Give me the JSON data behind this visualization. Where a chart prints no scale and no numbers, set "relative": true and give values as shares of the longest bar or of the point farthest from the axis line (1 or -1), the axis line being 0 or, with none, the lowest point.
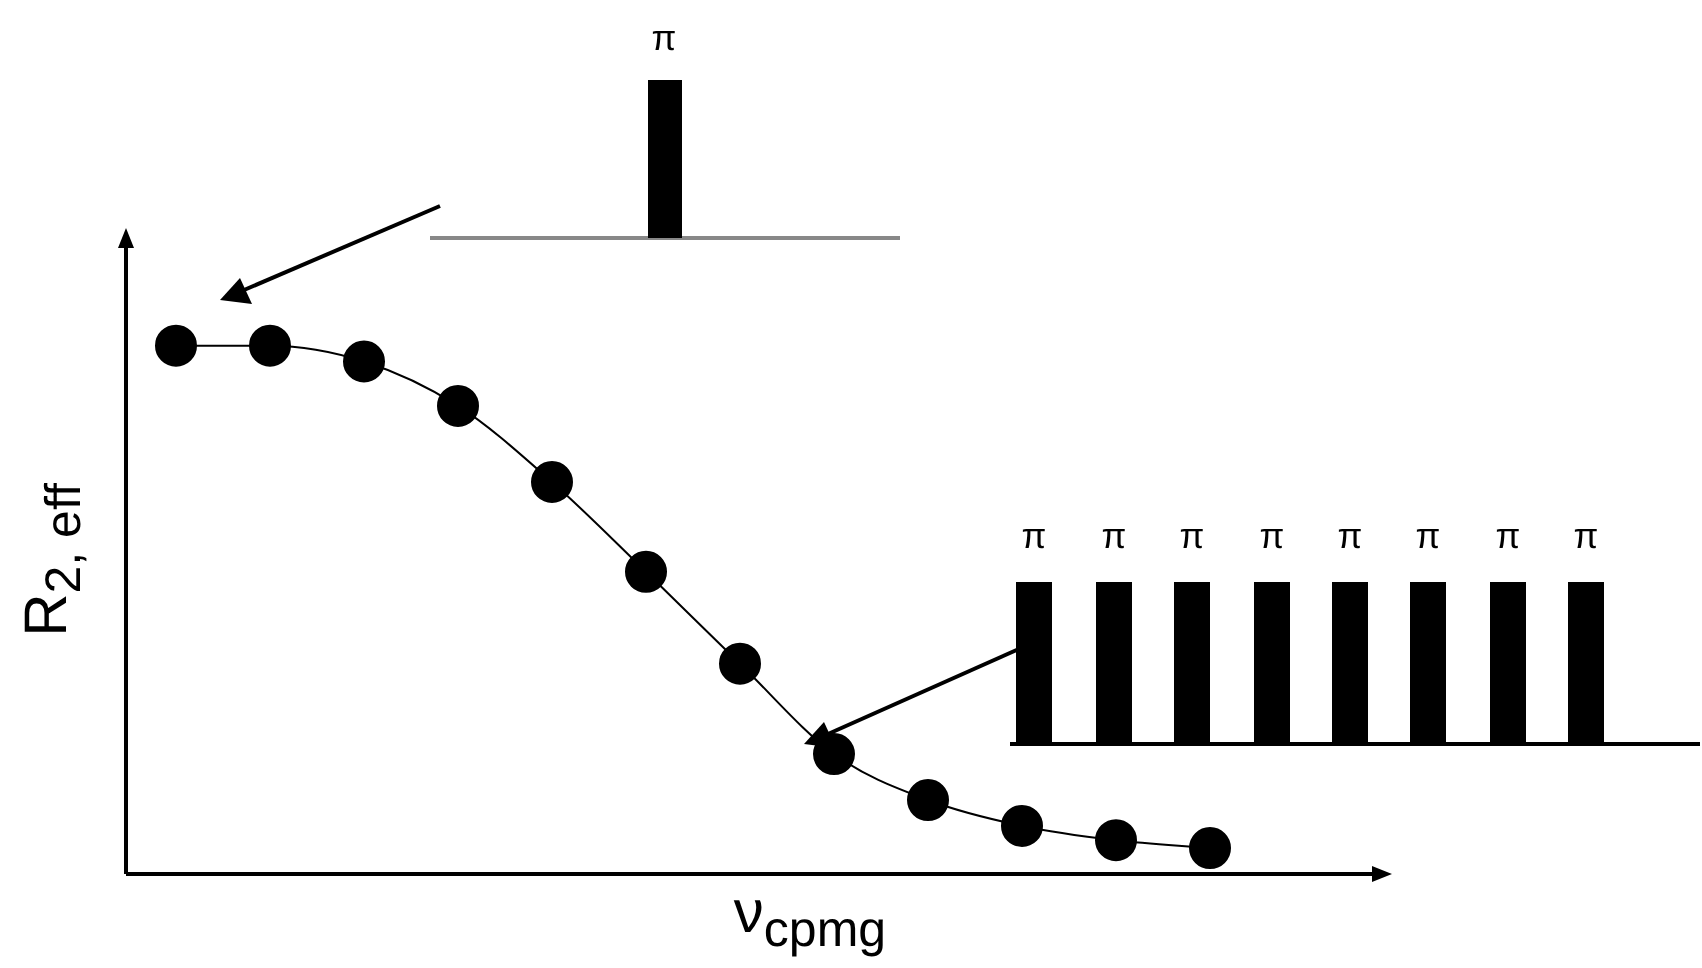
{
  "chart_data": {
    "type": "line",
    "relative": true,
    "xlabel": "ν$_{cpmg}$",
    "ylabel": "R$_{2, eff}$",
    "categories": [
      null,
      null,
      null,
      null,
      null,
      null,
      null,
      null,
      null,
      null,
      null,
      null
    ],
    "tick_labels": false,
    "annotations": [
      "π",
      "π",
      "π",
      "π",
      "π",
      "π",
      "π",
      "π",
      "π"
    ],
    "series": [
      {
        "color": "#000000",
        "marker": "circle",
        "line_style": "solid",
        "values": [
          1,
          1,
          0.97,
          0.886,
          0.742,
          0.572,
          0.398,
          0.227,
          0.14,
          0.091,
          0.064,
          0.049
        ]
      }
    ]
  }
}
